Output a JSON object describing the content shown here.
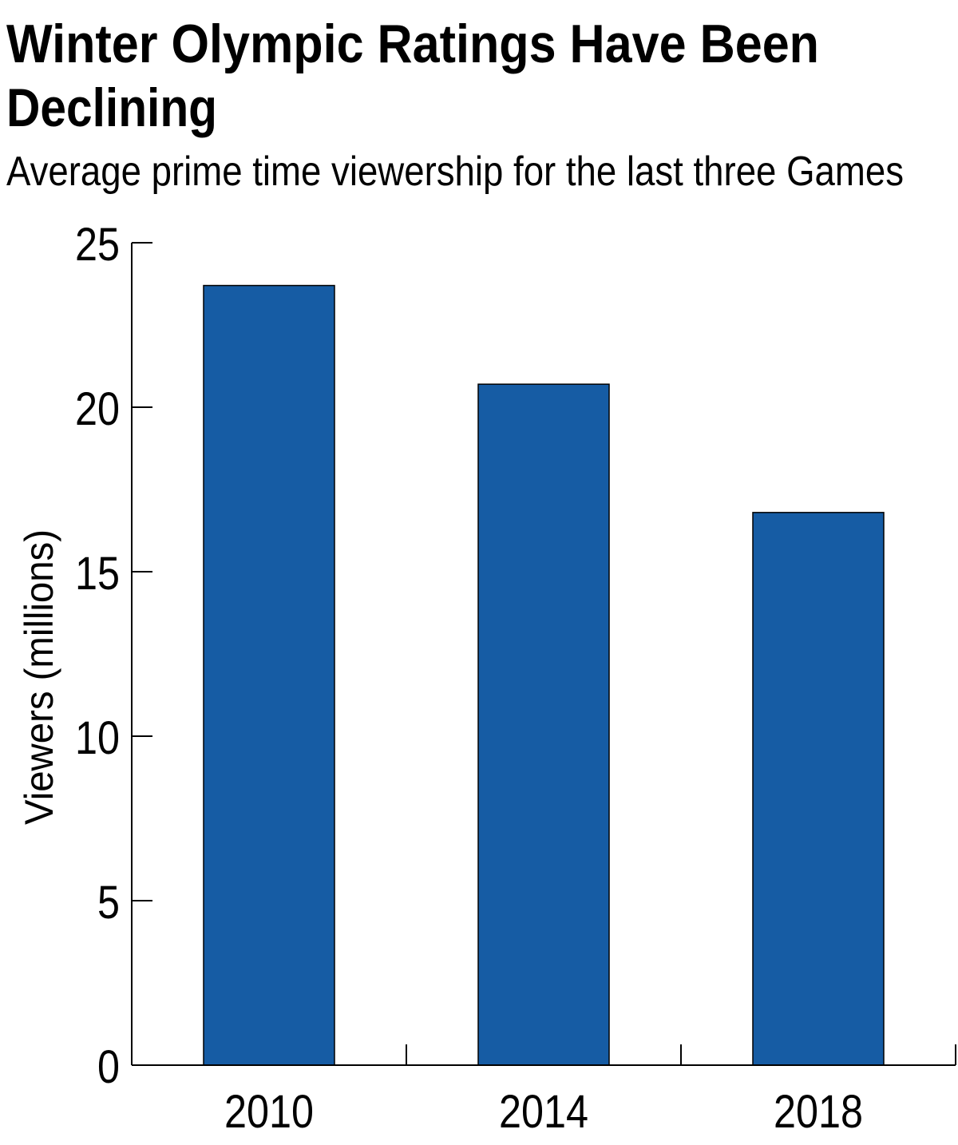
{
  "chart_data": {
    "type": "bar",
    "title": "Winter Olympic Ratings Have Been Declining",
    "title_lines": [
      "Winter Olympic Ratings Have Been",
      "Declining"
    ],
    "subtitle": "Average prime time viewership for the last three Games",
    "xlabel": "",
    "ylabel": "Viewers (millions)",
    "categories": [
      "2010",
      "2014",
      "2018"
    ],
    "values": [
      23.7,
      20.7,
      16.8
    ],
    "ylim": [
      0,
      25
    ],
    "yticks": [
      0,
      5,
      10,
      15,
      20,
      25
    ],
    "grid": false,
    "bar_color": "#165ca4"
  }
}
